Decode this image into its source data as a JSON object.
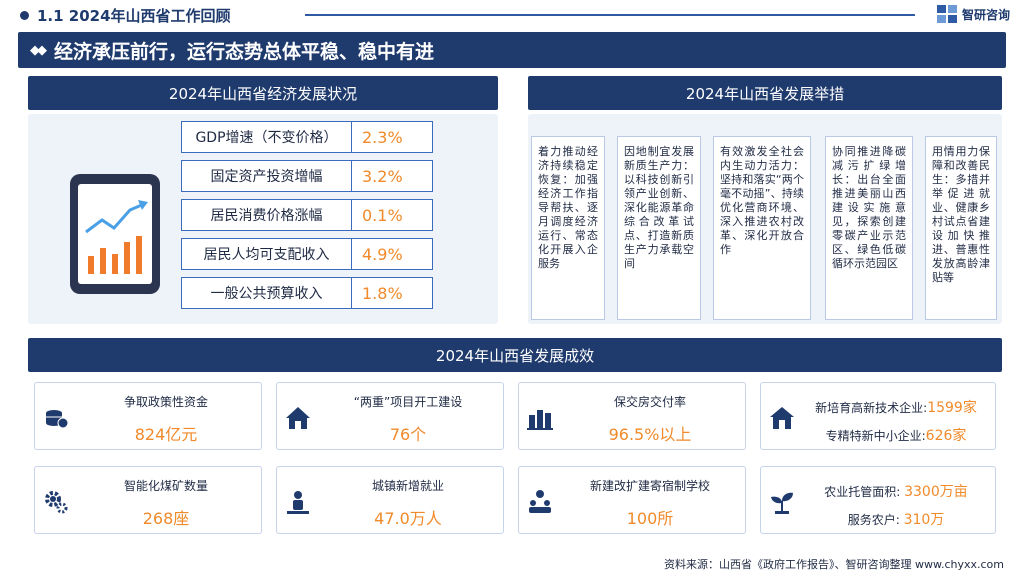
{
  "header": {
    "title": "1.1  2024年山西省工作回顾",
    "brand": "智研咨询"
  },
  "banner": {
    "title": "经济承压前行，运行态势总体平稳、稳中有进"
  },
  "economy": {
    "title": "2024年山西省经济发展状况",
    "metrics": [
      {
        "label": "GDP增速（不变价格）",
        "value": "2.3%"
      },
      {
        "label": "固定资产投资增幅",
        "value": "3.2%"
      },
      {
        "label": "居民消费价格涨幅",
        "value": "0.1%"
      },
      {
        "label": "居民人均可支配收入",
        "value": "4.9%"
      },
      {
        "label": "一般公共预算收入",
        "value": "1.8%"
      }
    ]
  },
  "measures": {
    "title": "2024年山西省发展举措",
    "items": [
      "着力推动经济持续稳定恢复：加强经济工作指导帮扶、逐月调度经济运行、常态化开展入企服务",
      "因地制宜发展新质生产力：以科技创新引领产业创新、深化能源革命综合改革试点、打造新质生产力承载空间",
      "有效激发全社会内生动力活力：坚持和落实“两个毫不动摇”、持续优化营商环境、深入推进农村改革、深化开放合作",
      "协同推进降碳减污扩绿增长：出台全面推进美丽山西建设实施意见，探索创建零碳产业示范区、绿色低碳循环示范园区",
      "用情用力保障和改善民生：多措并举促进就业、健康乡村试点省建设加快推进、普惠性发放高龄津贴等"
    ]
  },
  "results": {
    "title": "2024年山西省发展成效",
    "cards": [
      {
        "title": "争取政策性资金",
        "value": "824亿元",
        "icon": "coins-icon"
      },
      {
        "title": "“两重”项目开工建设",
        "value": "76个",
        "icon": "house-icon"
      },
      {
        "title": "保交房交付率",
        "value": "96.5%以上",
        "icon": "buildings-icon"
      },
      {
        "title": "新培育高新技术企业:",
        "value": "1599家",
        "title2": "专精特新中小企业:",
        "value2": "626家",
        "icon": "home-icon"
      },
      {
        "title": "智能化煤矿数量",
        "value": "268座",
        "icon": "gears-icon"
      },
      {
        "title": "城镇新增就业",
        "value": "47.0万人",
        "icon": "person-icon"
      },
      {
        "title": "新建改扩建寄宿制学校",
        "value": "100所",
        "icon": "people-icon"
      },
      {
        "title": "农业托管面积:",
        "value": "3300万亩",
        "title2": "服务农户:",
        "value2": "310万",
        "icon": "sprout-icon"
      }
    ]
  },
  "footer": {
    "source": "资料来源：山西省《政府工作报告》、智研咨询整理    www.chyxx.com"
  }
}
